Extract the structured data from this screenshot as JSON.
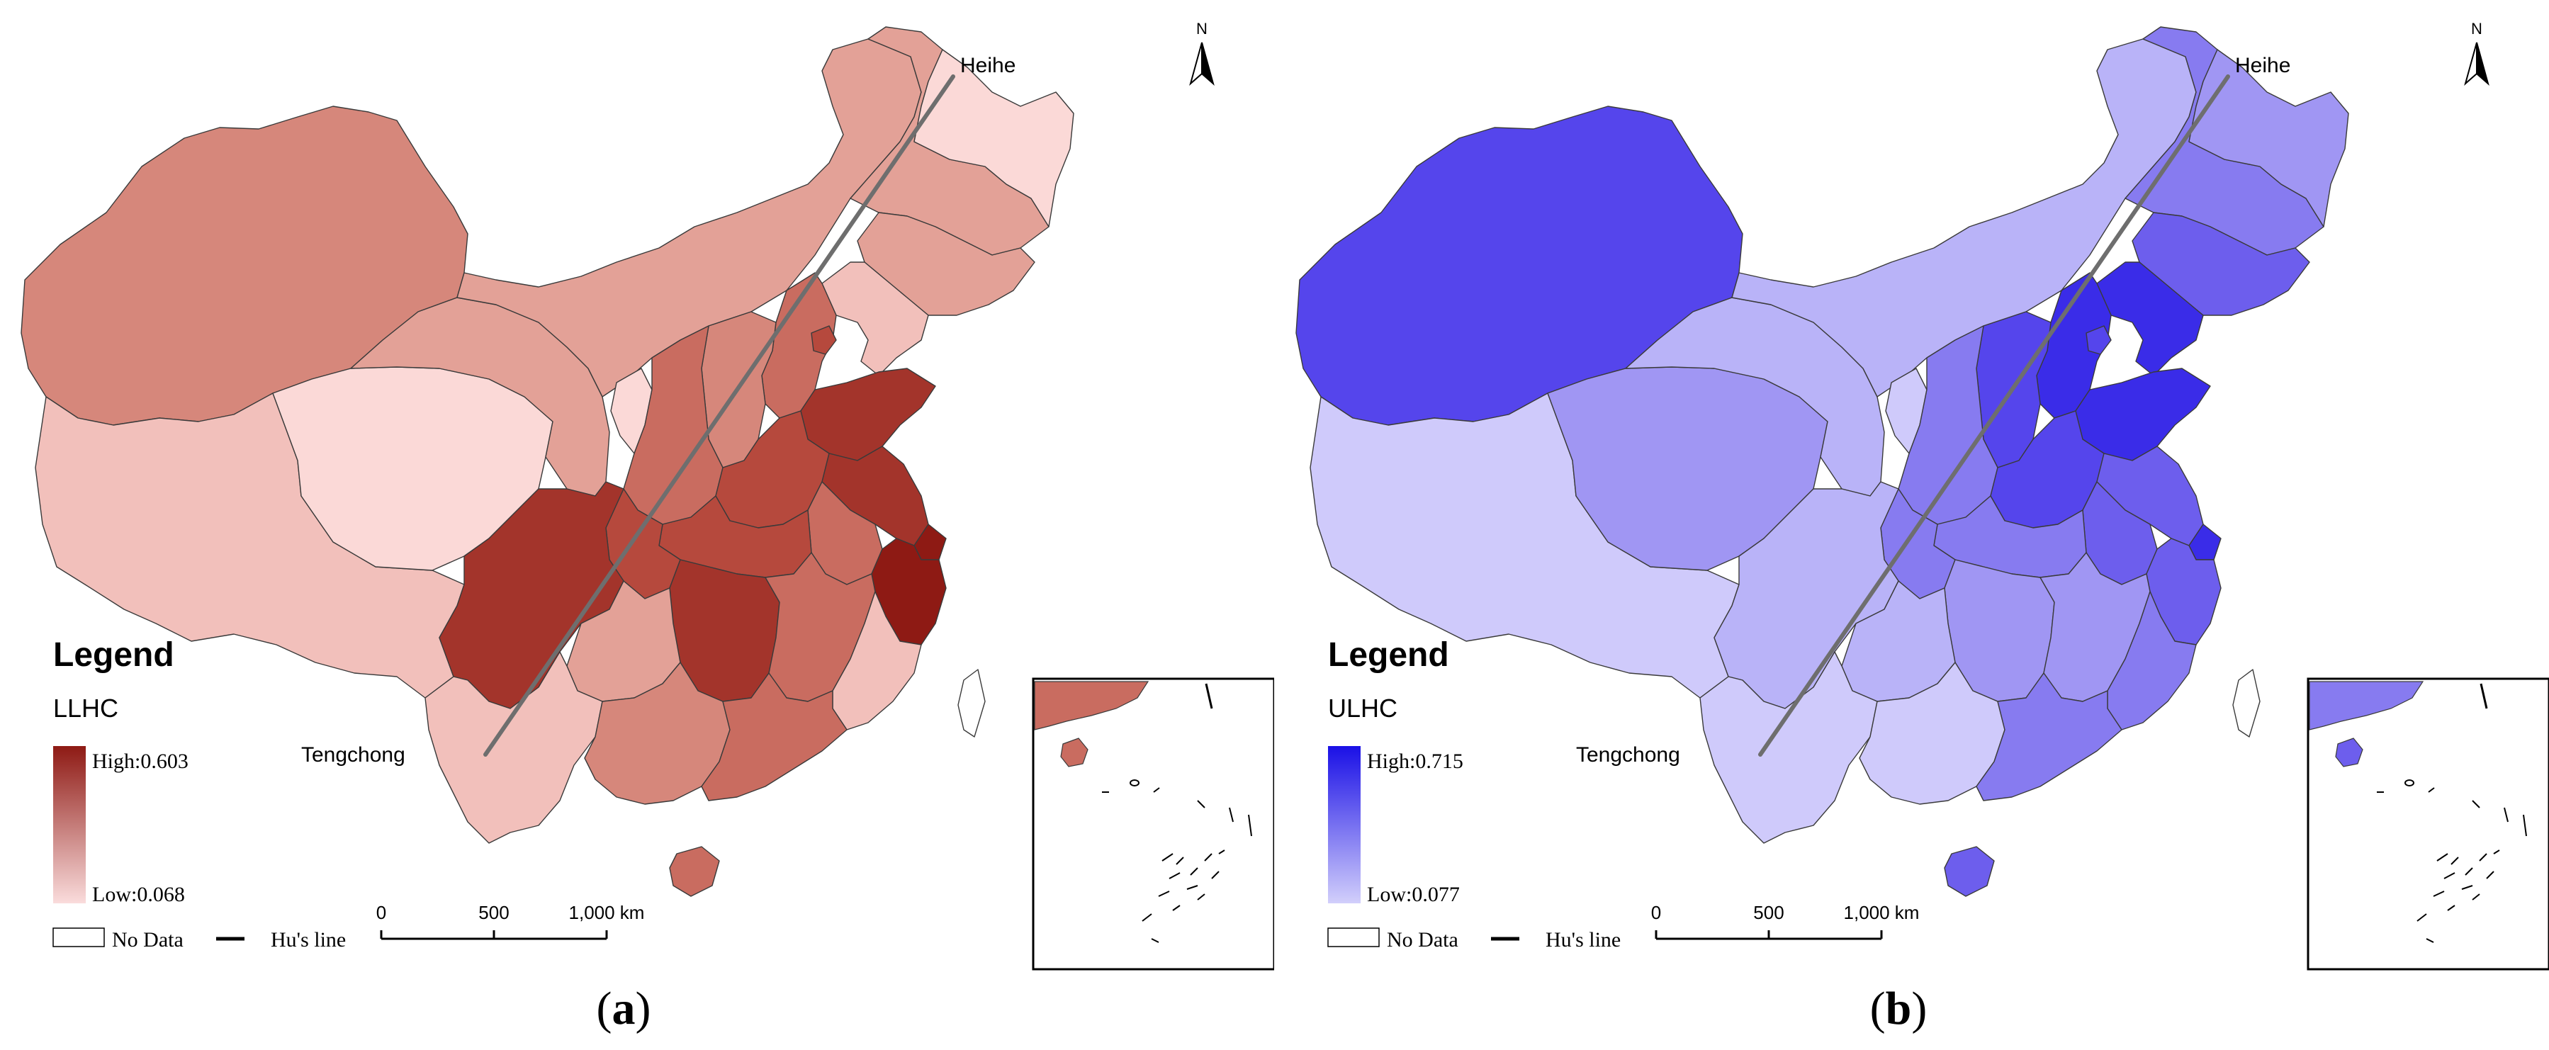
{
  "panels": [
    {
      "id": "a",
      "caption_letter": "a",
      "caption_open": "(",
      "caption_close": ")",
      "legend_title": "Legend",
      "variable": "LLHC",
      "high_label": "High:0.603",
      "low_label": "Low:0.068",
      "nodata_label": "No Data",
      "hu_label": "Hu's line",
      "scale_ticks": [
        "0",
        "500",
        "1,000 km"
      ],
      "city_north": "Heihe",
      "city_south": "Tengchong",
      "north_label": "N",
      "colors": {
        "high": "#8e1a14",
        "low": "#fadcdc",
        "c1": "#fbd9d7",
        "c2": "#f2c0bb",
        "c3": "#e3a197",
        "c4": "#d6877b",
        "c5": "#c96c60",
        "c6": "#b6493d",
        "c7": "#a3342b",
        "c8": "#8e1a14"
      },
      "regions": {
        "xinjiang": "c4",
        "tibet": "c2",
        "qinghai": "c1",
        "gansu": "c3",
        "inner_mongolia": "c3",
        "heilongjiang": "c3",
        "heilongjiang_north": "c1",
        "jilin": "c3",
        "liaoning": "c2",
        "beijing_hebei": "c5",
        "tianjin": "c6",
        "shanxi": "c4",
        "shaanxi": "c5",
        "ningxia": "c1",
        "shandong": "c7",
        "henan": "c6",
        "jiangsu": "c7",
        "shanghai": "c8",
        "anhui": "c5",
        "hubei": "c6",
        "sichuan": "c7",
        "chongqing": "c6",
        "hunan": "c7",
        "jiangxi": "c5",
        "zhejiang": "c8",
        "fujian": "c2",
        "guizhou": "c3",
        "yunnan": "c2",
        "guangxi": "c4",
        "guangdong": "c5",
        "hainan": "c5",
        "taiwan": "c0"
      }
    },
    {
      "id": "b",
      "caption_letter": "b",
      "caption_open": "(",
      "caption_close": ")",
      "legend_title": "Legend",
      "variable": "ULHC",
      "high_label": "High:0.715",
      "low_label": "Low:0.077",
      "nodata_label": "No Data",
      "hu_label": "Hu's line",
      "scale_ticks": [
        "0",
        "500",
        "1,000 km"
      ],
      "city_north": "Heihe",
      "city_south": "Tengchong",
      "north_label": "N",
      "colors": {
        "high": "#1a10e6",
        "low": "#d2cffb",
        "c1": "#cfcafb",
        "c2": "#b9b3f8",
        "c3": "#a096f3",
        "c4": "#877bf0",
        "c5": "#6d5eed",
        "c6": "#5545ec",
        "c7": "#3a2ce8",
        "c8": "#1a10e6"
      },
      "regions": {
        "xinjiang": "c6",
        "tibet": "c1",
        "qinghai": "c3",
        "gansu": "c2",
        "inner_mongolia": "c2",
        "heilongjiang": "c4",
        "heilongjiang_north": "c3",
        "jilin": "c5",
        "liaoning": "c7",
        "beijing_hebei": "c7",
        "tianjin": "c6",
        "shanxi": "c6",
        "shaanxi": "c4",
        "ningxia": "c1",
        "shandong": "c7",
        "henan": "c6",
        "jiangsu": "c5",
        "shanghai": "c7",
        "anhui": "c5",
        "hubei": "c4",
        "sichuan": "c2",
        "chongqing": "c4",
        "hunan": "c3",
        "jiangxi": "c3",
        "zhejiang": "c5",
        "fujian": "c4",
        "guizhou": "c2",
        "yunnan": "c1",
        "guangxi": "c1",
        "guangdong": "c4",
        "hainan": "c5",
        "taiwan": "c0"
      }
    }
  ]
}
